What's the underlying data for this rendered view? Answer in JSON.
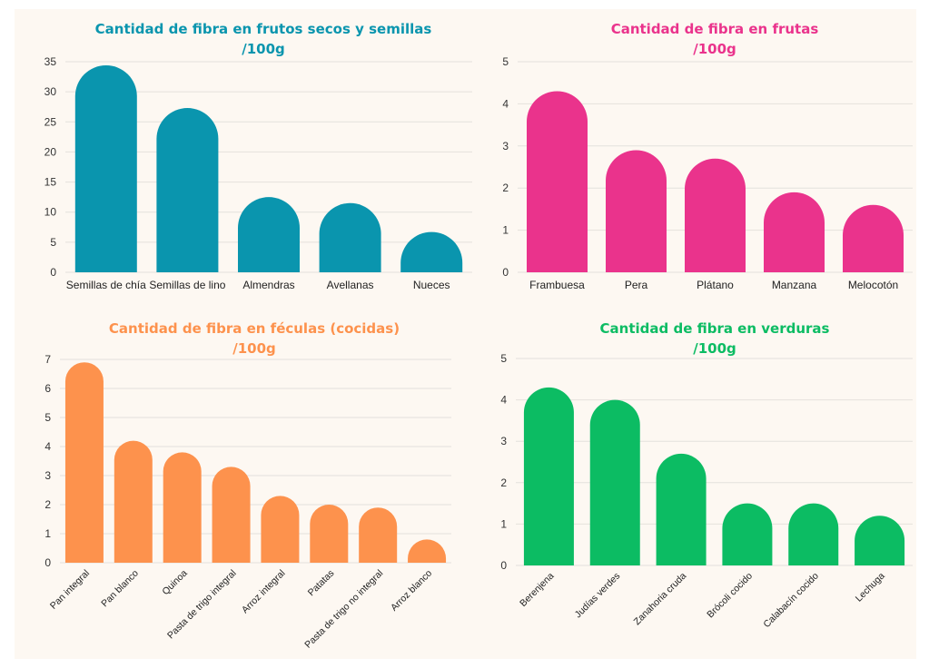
{
  "chart_data": [
    {
      "type": "bar",
      "title": "Cantidad de fibra en frutos secos y semillas",
      "subtitle": "/100g",
      "color": "#0a95ae",
      "categories": [
        "Semillas de chía",
        "Semillas de lino",
        "Almendras",
        "Avellanas",
        "Nueces"
      ],
      "values": [
        34.4,
        27.3,
        12.5,
        11.5,
        6.7
      ],
      "ylim": [
        0,
        35
      ],
      "yticks": [
        "0",
        "5",
        "10",
        "15",
        "20",
        "25",
        "30",
        "35"
      ],
      "grid": true,
      "rotated_labels": false
    },
    {
      "type": "bar",
      "title": "Cantidad de fibra en frutas",
      "subtitle": "/100g",
      "color": "#ea338c",
      "categories": [
        "Frambuesa",
        "Pera",
        "Plátano",
        "Manzana",
        "Melocotón"
      ],
      "values": [
        4.3,
        2.9,
        2.7,
        1.9,
        1.6
      ],
      "ylim": [
        0,
        5
      ],
      "yticks": [
        "0",
        "1",
        "2",
        "3",
        "4",
        "5"
      ],
      "grid": true,
      "rotated_labels": false
    },
    {
      "type": "bar",
      "title": "Cantidad de fibra en féculas (cocidas)",
      "subtitle": "/100g",
      "color": "#fd924d",
      "categories": [
        "Pan integral",
        "Pan blanco",
        "Quinoa",
        "Pasta de trigo integral",
        "Arroz integral",
        "Patatas",
        "Pasta de trigo no integral",
        "Arroz blanco"
      ],
      "values": [
        6.9,
        4.2,
        3.8,
        3.3,
        2.3,
        2.0,
        1.9,
        0.8
      ],
      "ylim": [
        0,
        7
      ],
      "yticks": [
        "0",
        "1",
        "2",
        "3",
        "4",
        "5",
        "6",
        "7"
      ],
      "grid": true,
      "rotated_labels": true
    },
    {
      "type": "bar",
      "title": "Cantidad de fibra en verduras",
      "subtitle": "/100g",
      "color": "#0cbc63",
      "categories": [
        "Berenjena",
        "Judías verdes",
        "Zanahoria cruda",
        "Brócoli cocido",
        "Calabacín cocido",
        "Lechuga"
      ],
      "values": [
        4.3,
        4.0,
        2.7,
        1.5,
        1.5,
        1.2
      ],
      "ylim": [
        0,
        5
      ],
      "yticks": [
        "0",
        "1",
        "2",
        "3",
        "4",
        "5"
      ],
      "grid": true,
      "rotated_labels": true
    }
  ]
}
